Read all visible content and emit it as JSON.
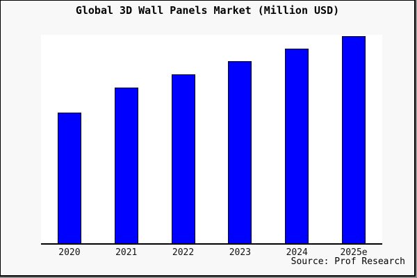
{
  "chart_data": {
    "type": "bar",
    "title": "Global 3D Wall Panels Market (Million USD)",
    "categories": [
      "2020",
      "2021",
      "2022",
      "2023",
      "2024",
      "2025e"
    ],
    "values": [
      189,
      226,
      245,
      264,
      282,
      300
    ],
    "xlabel": "",
    "ylabel": "",
    "ylim": [
      0,
      302
    ],
    "grid": false,
    "y_axis_visible": false,
    "legend": "none",
    "source": "Source: Prof Research",
    "bar_color": "#0000ff",
    "bar_edge_color": "#000014",
    "axis_color": "#000000",
    "plot_background": "#ffffff",
    "figure_background": "#f8f8f8"
  }
}
